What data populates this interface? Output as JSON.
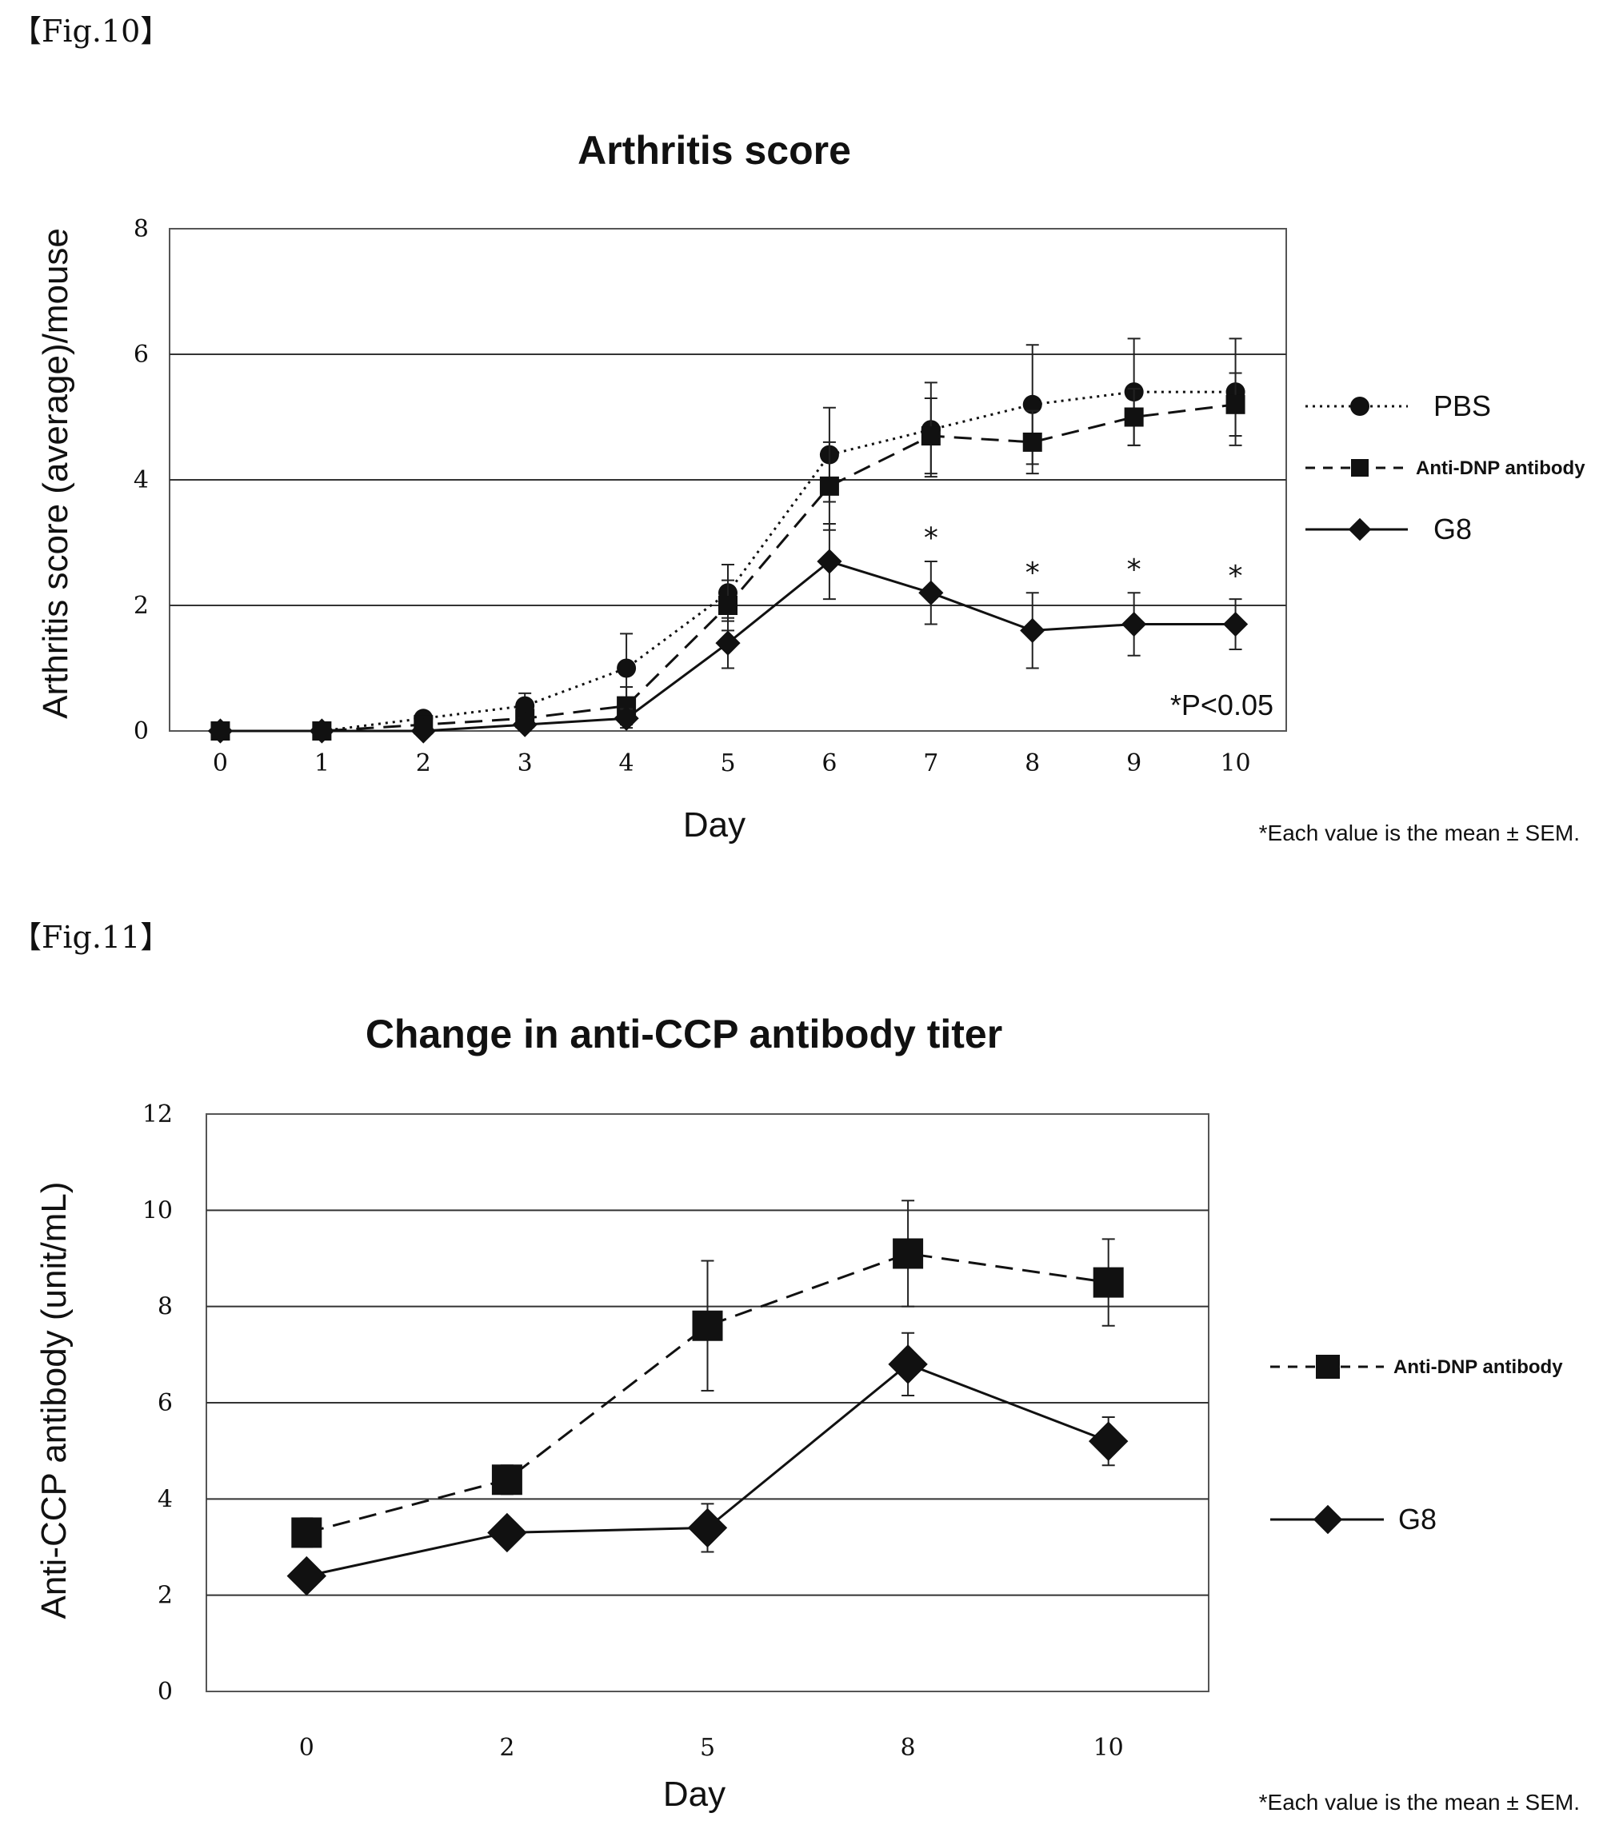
{
  "figure10": {
    "label": "【Fig.10】",
    "note": "*Each value is the mean ± SEM.",
    "pvalue_note": "*P<0.05"
  },
  "figure11": {
    "label": "【Fig.11】",
    "note": "*Each value is the mean ± SEM."
  },
  "chart_data": [
    {
      "type": "line",
      "title": "Arthritis score",
      "xlabel": "Day",
      "ylabel": "Arthritis score (average)/mouse",
      "x": [
        0,
        1,
        2,
        3,
        4,
        5,
        6,
        7,
        8,
        9,
        10
      ],
      "xticks": [
        "0",
        "1",
        "2",
        "3",
        "4",
        "5",
        "6",
        "7",
        "8",
        "9",
        "10"
      ],
      "ylim": [
        0,
        8
      ],
      "yticks": [
        "0",
        "2",
        "4",
        "6",
        "8"
      ],
      "grid": true,
      "legend_position": "right",
      "series": [
        {
          "name": "PBS",
          "style": "dotted",
          "marker": "circle",
          "values": [
            0,
            0,
            0.2,
            0.4,
            1.0,
            2.2,
            4.4,
            4.8,
            5.2,
            5.4,
            5.4
          ],
          "err": [
            0,
            0,
            0.1,
            0.2,
            0.55,
            0.45,
            0.75,
            0.75,
            0.95,
            0.85,
            0.85
          ]
        },
        {
          "name": "Anti-DNP antibody",
          "style": "dashed",
          "marker": "square",
          "values": [
            0,
            0,
            0.1,
            0.2,
            0.4,
            2.0,
            3.9,
            4.7,
            4.6,
            5.0,
            5.2
          ],
          "err": [
            0,
            0,
            0.1,
            0.1,
            0.3,
            0.4,
            0.7,
            0.6,
            0.5,
            0.45,
            0.5
          ]
        },
        {
          "name": "G8",
          "style": "solid",
          "marker": "diamond",
          "values": [
            0,
            0,
            0,
            0.1,
            0.2,
            1.4,
            2.7,
            2.2,
            1.6,
            1.7,
            1.7
          ],
          "err": [
            0,
            0,
            0,
            0.1,
            0.15,
            0.4,
            0.6,
            0.5,
            0.6,
            0.5,
            0.4
          ]
        }
      ],
      "annotations": [
        {
          "x": 7,
          "y": 3.1,
          "text": "*"
        },
        {
          "x": 8,
          "y": 2.55,
          "text": "*"
        },
        {
          "x": 9,
          "y": 2.6,
          "text": "*"
        },
        {
          "x": 10,
          "y": 2.5,
          "text": "*"
        }
      ]
    },
    {
      "type": "line",
      "title": "Change in anti-CCP antibody titer",
      "xlabel": "Day",
      "ylabel": "Anti-CCP antibody (unit/mL)",
      "x": [
        0,
        2,
        5,
        8,
        10
      ],
      "xticks": [
        "0",
        "2",
        "5",
        "8",
        "10"
      ],
      "ylim": [
        0,
        12
      ],
      "yticks": [
        "0",
        "2",
        "4",
        "6",
        "8",
        "10",
        "12"
      ],
      "grid": true,
      "legend_position": "right",
      "series": [
        {
          "name": "Anti-DNP antibody",
          "style": "dashed",
          "marker": "square",
          "values": [
            3.3,
            4.4,
            7.6,
            9.1,
            8.5
          ],
          "err": [
            0.3,
            0.3,
            1.35,
            1.1,
            0.9
          ]
        },
        {
          "name": "G8",
          "style": "solid",
          "marker": "diamond",
          "values": [
            2.4,
            3.3,
            3.4,
            6.8,
            5.2
          ],
          "err": [
            0.2,
            0.25,
            0.5,
            0.65,
            0.5
          ]
        }
      ]
    }
  ]
}
